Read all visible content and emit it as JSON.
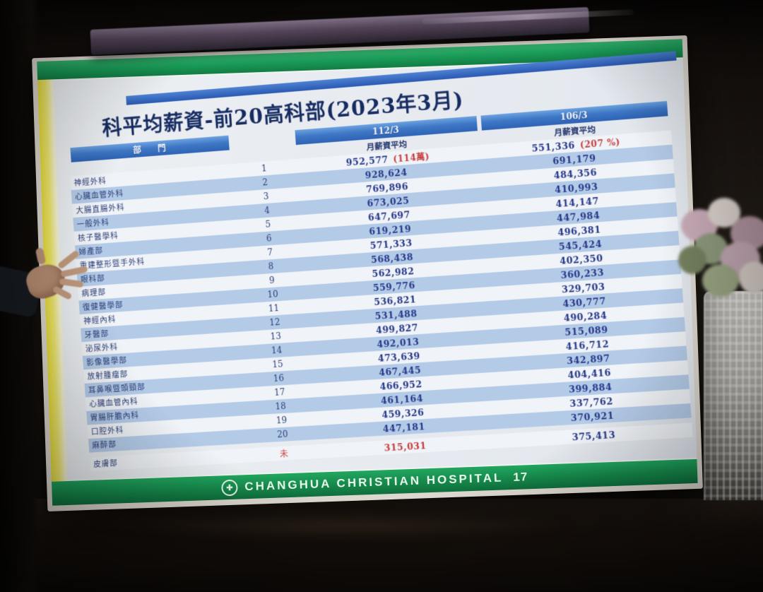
{
  "slide": {
    "title": "科平均薪資-前20高科部(2023年3月)",
    "footer": {
      "hospital": "CHANGHUA CHRISTIAN HOSPITAL",
      "page": "17",
      "logo": "hospital-emblem"
    },
    "table": {
      "dept_header": "部 門",
      "col112": {
        "period": "112/3",
        "label": "月薪資平均"
      },
      "col106": {
        "period": "106/3",
        "label": "月薪資平均"
      },
      "rows": [
        {
          "dept": "神經外科",
          "rank": "1",
          "v112": "952,577",
          "note112": "(114萬)",
          "v106": "551,336",
          "note106": "(207 %)"
        },
        {
          "dept": "心臟血管外科",
          "rank": "2",
          "v112": "928,624",
          "v106": "691,179"
        },
        {
          "dept": "大腸直腸外科",
          "rank": "3",
          "v112": "769,896",
          "v106": "484,356"
        },
        {
          "dept": "一般外科",
          "rank": "4",
          "v112": "673,025",
          "v106": "410,993"
        },
        {
          "dept": "核子醫學科",
          "rank": "5",
          "v112": "647,697",
          "v106": "414,147"
        },
        {
          "dept": "婦產部",
          "rank": "6",
          "v112": "619,219",
          "v106": "447,984"
        },
        {
          "dept": "重建整形暨手外科",
          "rank": "7",
          "v112": "571,333",
          "v106": "496,381"
        },
        {
          "dept": "眼科部",
          "rank": "8",
          "v112": "568,438",
          "v106": "545,424"
        },
        {
          "dept": "病理部",
          "rank": "9",
          "v112": "562,982",
          "v106": "402,350"
        },
        {
          "dept": "復健醫學部",
          "rank": "10",
          "v112": "559,776",
          "v106": "360,233"
        },
        {
          "dept": "神經內科",
          "rank": "11",
          "v112": "536,821",
          "v106": "329,703"
        },
        {
          "dept": "牙醫部",
          "rank": "12",
          "v112": "531,488",
          "v106": "430,777"
        },
        {
          "dept": "泌尿外科",
          "rank": "13",
          "v112": "499,827",
          "v106": "490,284"
        },
        {
          "dept": "影像醫學部",
          "rank": "14",
          "v112": "492,013",
          "v106": "515,089"
        },
        {
          "dept": "放射腫瘤部",
          "rank": "15",
          "v112": "473,639",
          "v106": "416,712"
        },
        {
          "dept": "耳鼻喉暨頭頸部",
          "rank": "16",
          "v112": "467,445",
          "v106": "342,897"
        },
        {
          "dept": "心臟血管內科",
          "rank": "17",
          "v112": "466,952",
          "v106": "404,416"
        },
        {
          "dept": "胃腸肝膽內科",
          "rank": "18",
          "v112": "461,164",
          "v106": "399,884"
        },
        {
          "dept": "口腔外科",
          "rank": "19",
          "v112": "459,326",
          "v106": "337,762"
        },
        {
          "dept": "麻醉部",
          "rank": "20",
          "v112": "447,181",
          "v106": "370,921"
        },
        {
          "dept": "皮膚部",
          "rank": "未",
          "v112": "315,031",
          "v106": "375,413",
          "highlight": true
        }
      ]
    },
    "colors": {
      "band_green": "#0e8746",
      "header_blue": "#2a62ba",
      "row_blue": "#b4cdec",
      "number_navy": "#22368c",
      "alert_red": "#cc3b3b",
      "accent_yellow": "#efe33f"
    }
  }
}
